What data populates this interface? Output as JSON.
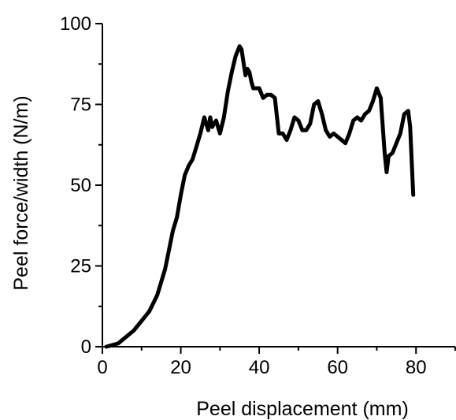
{
  "chart_data": {
    "type": "line",
    "title": "",
    "xlabel": "Peel displacement (mm)",
    "ylabel": "Peel force/width (N/m)",
    "xlim": [
      0,
      90
    ],
    "ylim": [
      0,
      100
    ],
    "x_ticks": [
      0,
      20,
      40,
      60,
      80
    ],
    "y_ticks": [
      0,
      25,
      50,
      75,
      100
    ],
    "x_tick_labels": [
      "0",
      "20",
      "40",
      "60",
      "80"
    ],
    "y_tick_labels": [
      "0",
      "25",
      "50",
      "75",
      "100"
    ],
    "grid": false,
    "legend": "none",
    "series": [
      {
        "color": "#000000",
        "x": [
          1,
          4,
          6,
          8,
          10,
          12,
          14,
          16,
          18,
          19,
          20,
          21,
          22,
          23,
          24,
          25,
          26,
          27,
          27.5,
          28,
          29,
          30,
          31,
          32,
          33,
          34,
          35,
          35.5,
          36,
          36.5,
          37,
          37.5,
          38,
          38.5,
          39,
          40,
          41,
          42,
          43,
          44,
          45,
          46,
          47,
          48,
          49,
          50,
          51,
          52,
          53,
          54,
          55,
          56,
          57,
          58,
          59,
          60,
          61,
          62,
          63,
          64,
          65,
          66,
          67,
          68,
          69,
          70,
          71,
          72,
          72.5,
          73,
          74,
          75,
          76,
          77,
          78,
          78.5,
          79,
          79.3
        ],
        "y": [
          0,
          1,
          3,
          5,
          8,
          11,
          16,
          24,
          36,
          40,
          47,
          53,
          56,
          58,
          62,
          66,
          71,
          67,
          71,
          68,
          70,
          66,
          71,
          79,
          85,
          90,
          93,
          92,
          88,
          84,
          86,
          85,
          82,
          80,
          80,
          80,
          77,
          78,
          78,
          77,
          66,
          66,
          64,
          67,
          71,
          70,
          67,
          67,
          69,
          75,
          76,
          72,
          67,
          65,
          66,
          65,
          64,
          63,
          66,
          70,
          71,
          70,
          72,
          73,
          76,
          80,
          77,
          60,
          54,
          59,
          60,
          63,
          66,
          72,
          73,
          68,
          55,
          47
        ]
      }
    ]
  }
}
